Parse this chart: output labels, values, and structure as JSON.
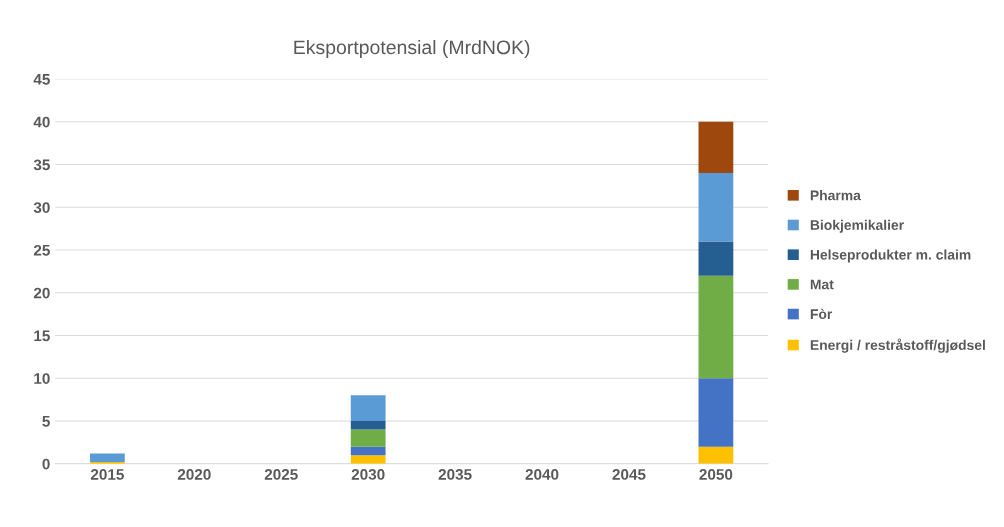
{
  "chart_data": {
    "type": "bar",
    "title": "Eksportpotensial (MrdNOK)",
    "stacked": true,
    "categories": [
      "2015",
      "2020",
      "2025",
      "2030",
      "2035",
      "2040",
      "2045",
      "2050"
    ],
    "series": [
      {
        "name": "Energi / restråstoff/gjødsel",
        "color": "#ffc000",
        "values": [
          0.2,
          null,
          null,
          1,
          null,
          null,
          null,
          2
        ]
      },
      {
        "name": "Fòr",
        "color": "#4472c4",
        "values": [
          null,
          null,
          null,
          1,
          null,
          null,
          null,
          8
        ]
      },
      {
        "name": "Mat",
        "color": "#70ad47",
        "values": [
          null,
          null,
          null,
          2,
          null,
          null,
          null,
          12
        ]
      },
      {
        "name": "Helseprodukter m. claim",
        "color": "#255e91",
        "values": [
          null,
          null,
          null,
          1,
          null,
          null,
          null,
          4
        ]
      },
      {
        "name": "Biokjemikalier",
        "color": "#5b9bd5",
        "values": [
          1.0,
          null,
          null,
          3,
          null,
          null,
          null,
          8
        ]
      },
      {
        "name": "Pharma",
        "color": "#9e480e",
        "values": [
          null,
          null,
          null,
          null,
          null,
          null,
          null,
          6
        ]
      }
    ],
    "ylim": [
      0,
      45
    ],
    "yticks": [
      0,
      5,
      10,
      15,
      20,
      25,
      30,
      35,
      40,
      45
    ],
    "grid": "y",
    "legend": "right"
  }
}
